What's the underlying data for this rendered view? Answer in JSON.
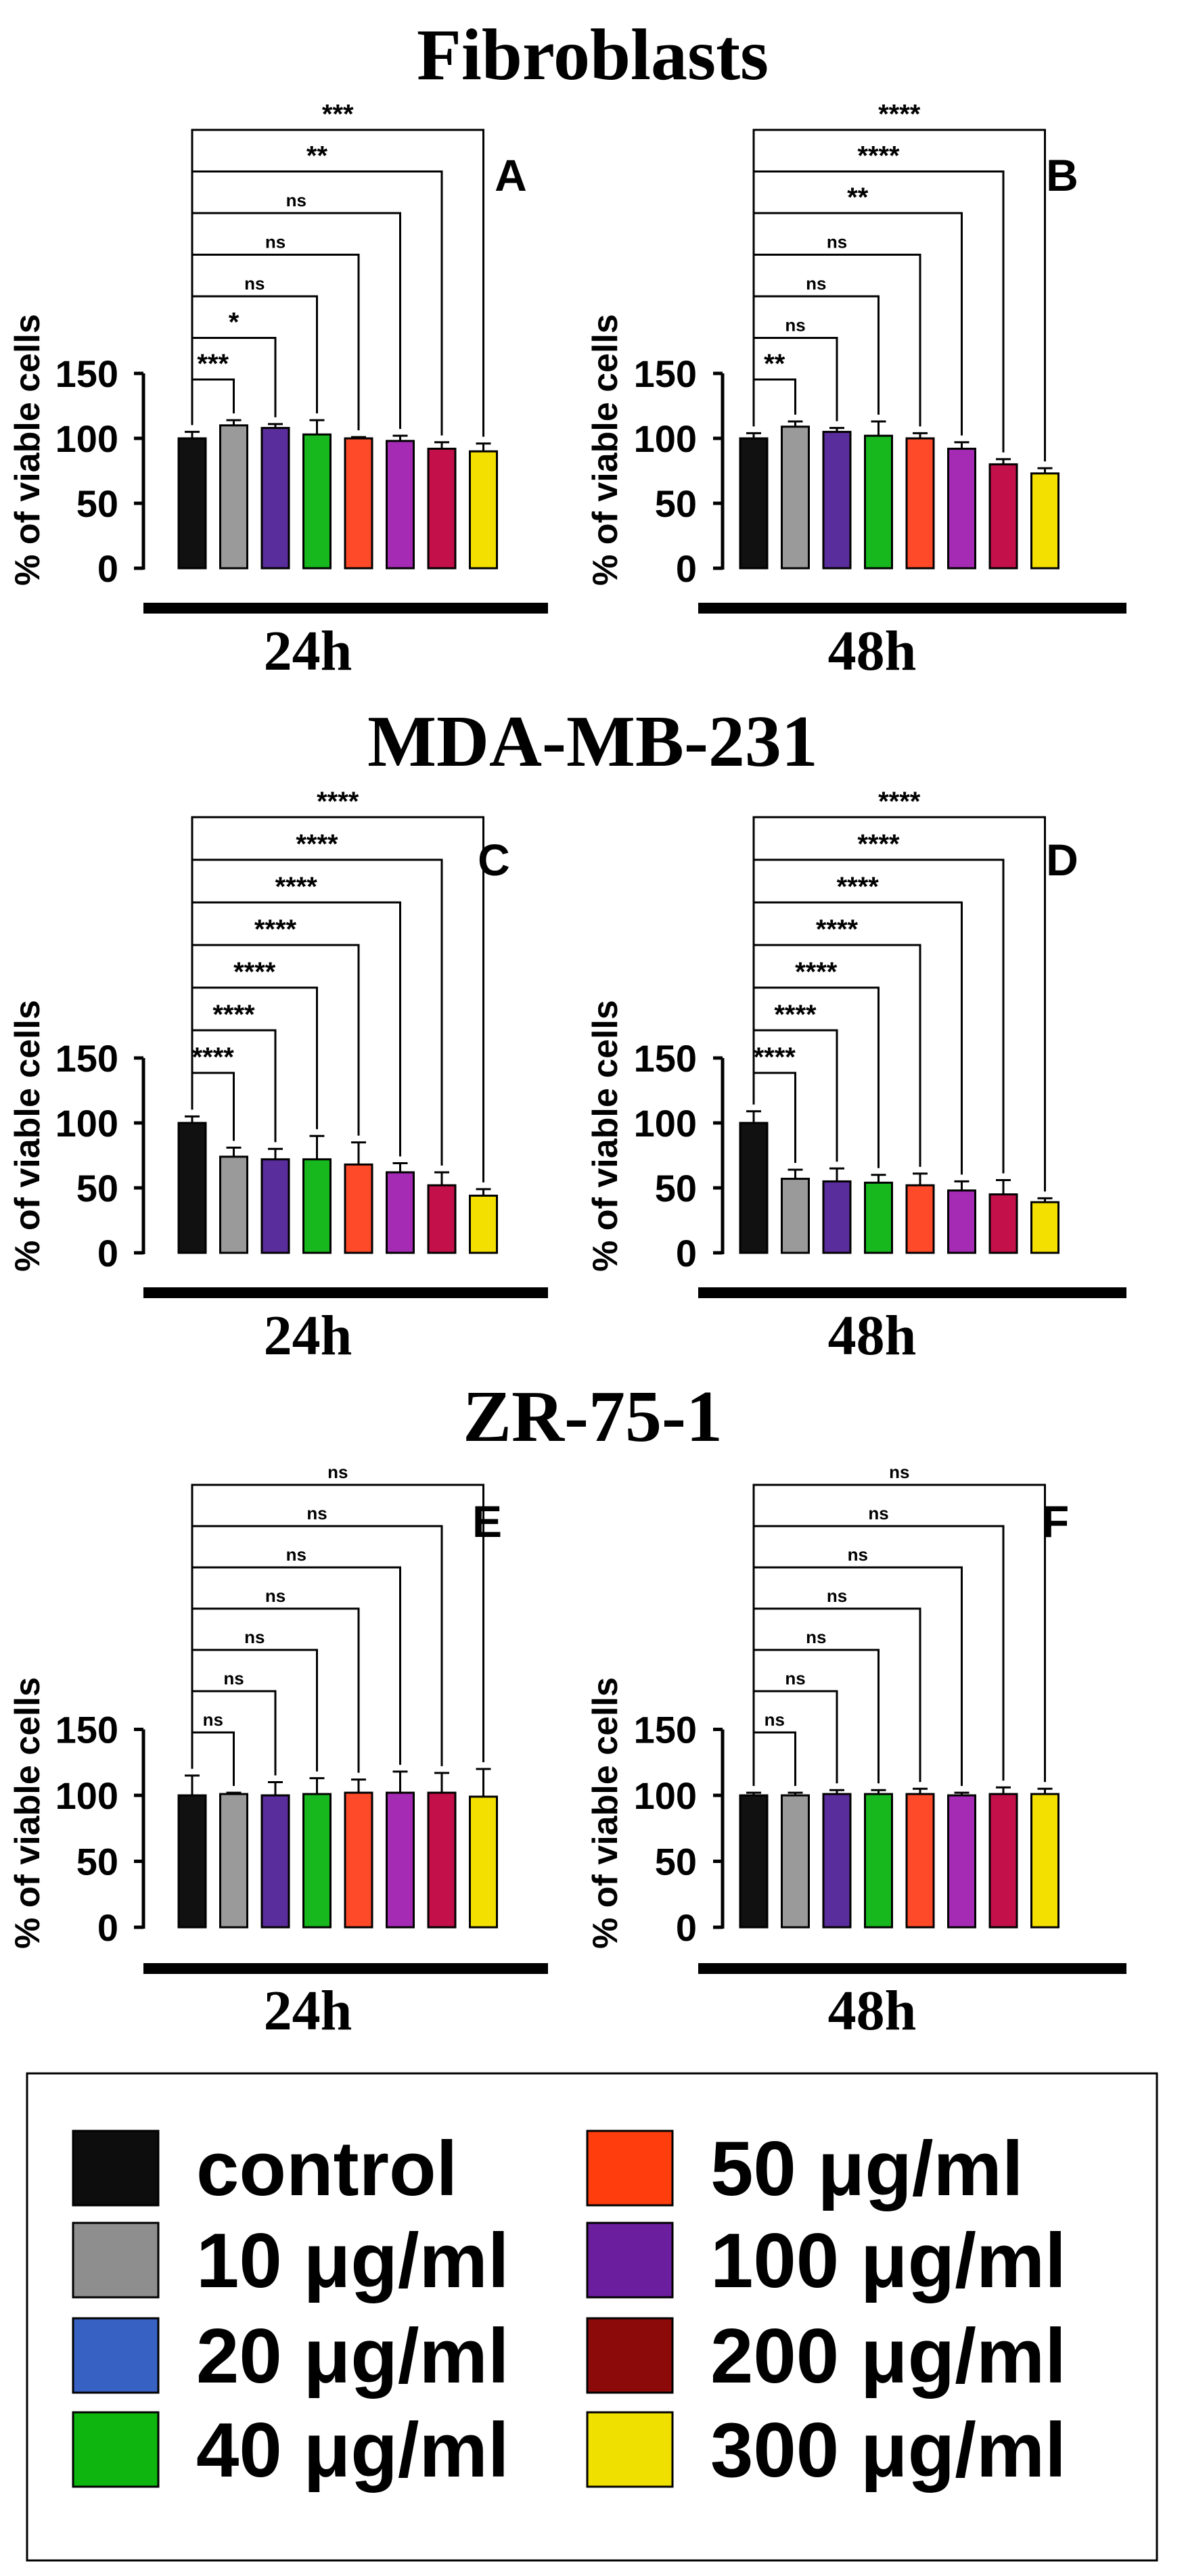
{
  "chart_data": [
    {
      "id": "A",
      "type": "bar",
      "section": "Fibroblasts",
      "panel_label": "A",
      "title": "Fibroblasts",
      "timepoint": "24h",
      "ylabel": "% of viable cells",
      "ylim": [
        0,
        150
      ],
      "yticks": [
        0,
        50,
        100,
        150
      ],
      "values": [
        100,
        110,
        108,
        103,
        100,
        98,
        92,
        90
      ],
      "errors": [
        5,
        4,
        3,
        11,
        1,
        4,
        5,
        6
      ],
      "significance": [
        "***",
        "*",
        "ns",
        "ns",
        "ns",
        "**",
        "***"
      ]
    },
    {
      "id": "B",
      "type": "bar",
      "panel_label": "B",
      "timepoint": "48h",
      "ylabel": "% of viable cells",
      "ylim": [
        0,
        150
      ],
      "yticks": [
        0,
        50,
        100,
        150
      ],
      "values": [
        100,
        109,
        105,
        102,
        100,
        92,
        80,
        73
      ],
      "errors": [
        4,
        4,
        3,
        11,
        4,
        5,
        4,
        4
      ],
      "significance": [
        "**",
        "ns",
        "ns",
        "ns",
        "**",
        "****",
        "****"
      ]
    },
    {
      "id": "C",
      "type": "bar",
      "section": "MDA-MB-231",
      "panel_label": "C",
      "title": "MDA-MB-231",
      "timepoint": "24h",
      "ylabel": "% of viable cells",
      "ylim": [
        0,
        150
      ],
      "yticks": [
        0,
        50,
        100,
        150
      ],
      "values": [
        100,
        74,
        72,
        72,
        68,
        62,
        52,
        44
      ],
      "errors": [
        5,
        7,
        8,
        18,
        17,
        7,
        10,
        5
      ],
      "significance": [
        "****",
        "****",
        "****",
        "****",
        "****",
        "****",
        "****"
      ]
    },
    {
      "id": "D",
      "type": "bar",
      "panel_label": "D",
      "timepoint": "48h",
      "ylabel": "% of viable cells",
      "ylim": [
        0,
        150
      ],
      "yticks": [
        0,
        50,
        100,
        150
      ],
      "values": [
        100,
        57,
        55,
        54,
        52,
        48,
        45,
        39
      ],
      "errors": [
        9,
        7,
        10,
        6,
        9,
        7,
        11,
        3
      ],
      "significance": [
        "****",
        "****",
        "****",
        "****",
        "****",
        "****",
        "****"
      ]
    },
    {
      "id": "E",
      "type": "bar",
      "section": "ZR-75-1",
      "panel_label": "E",
      "title": "ZR-75-1",
      "timepoint": "24h",
      "ylabel": "% of viable cells",
      "ylim": [
        0,
        150
      ],
      "yticks": [
        0,
        50,
        100,
        150
      ],
      "values": [
        100,
        101,
        100,
        101,
        102,
        102,
        102,
        99
      ],
      "errors": [
        15,
        1,
        10,
        12,
        10,
        16,
        15,
        21
      ],
      "significance": [
        "ns",
        "ns",
        "ns",
        "ns",
        "ns",
        "ns",
        "ns"
      ]
    },
    {
      "id": "F",
      "type": "bar",
      "panel_label": "F",
      "timepoint": "48h",
      "ylabel": "% of viable cells",
      "ylim": [
        0,
        150
      ],
      "yticks": [
        0,
        50,
        100,
        150
      ],
      "values": [
        100,
        100,
        101,
        101,
        101,
        100,
        101,
        101
      ],
      "errors": [
        2,
        2,
        3,
        3,
        4,
        2,
        5,
        4
      ],
      "significance": [
        "ns",
        "ns",
        "ns",
        "ns",
        "ns",
        "ns",
        "ns"
      ]
    }
  ],
  "bar_colors": [
    "#111111",
    "#9a9a9a",
    "#5a2d9c",
    "#16b81e",
    "#ff4a2a",
    "#a52bb5",
    "#c4104a",
    "#f4e000"
  ],
  "legend": [
    {
      "label": "control",
      "color": "#0d0d0d"
    },
    {
      "label": "10 μg/ml",
      "color": "#8e8e8e"
    },
    {
      "label": "20 μg/ml",
      "color": "#3762c3"
    },
    {
      "label": "40 μg/ml",
      "color": "#0eb50e"
    },
    {
      "label": "50 μg/ml",
      "color": "#ff3d0d"
    },
    {
      "label": "100 μg/ml",
      "color": "#6b1e9e"
    },
    {
      "label": "200 μg/ml",
      "color": "#8c0a0a"
    },
    {
      "label": "300 μg/ml",
      "color": "#f0e000"
    }
  ]
}
